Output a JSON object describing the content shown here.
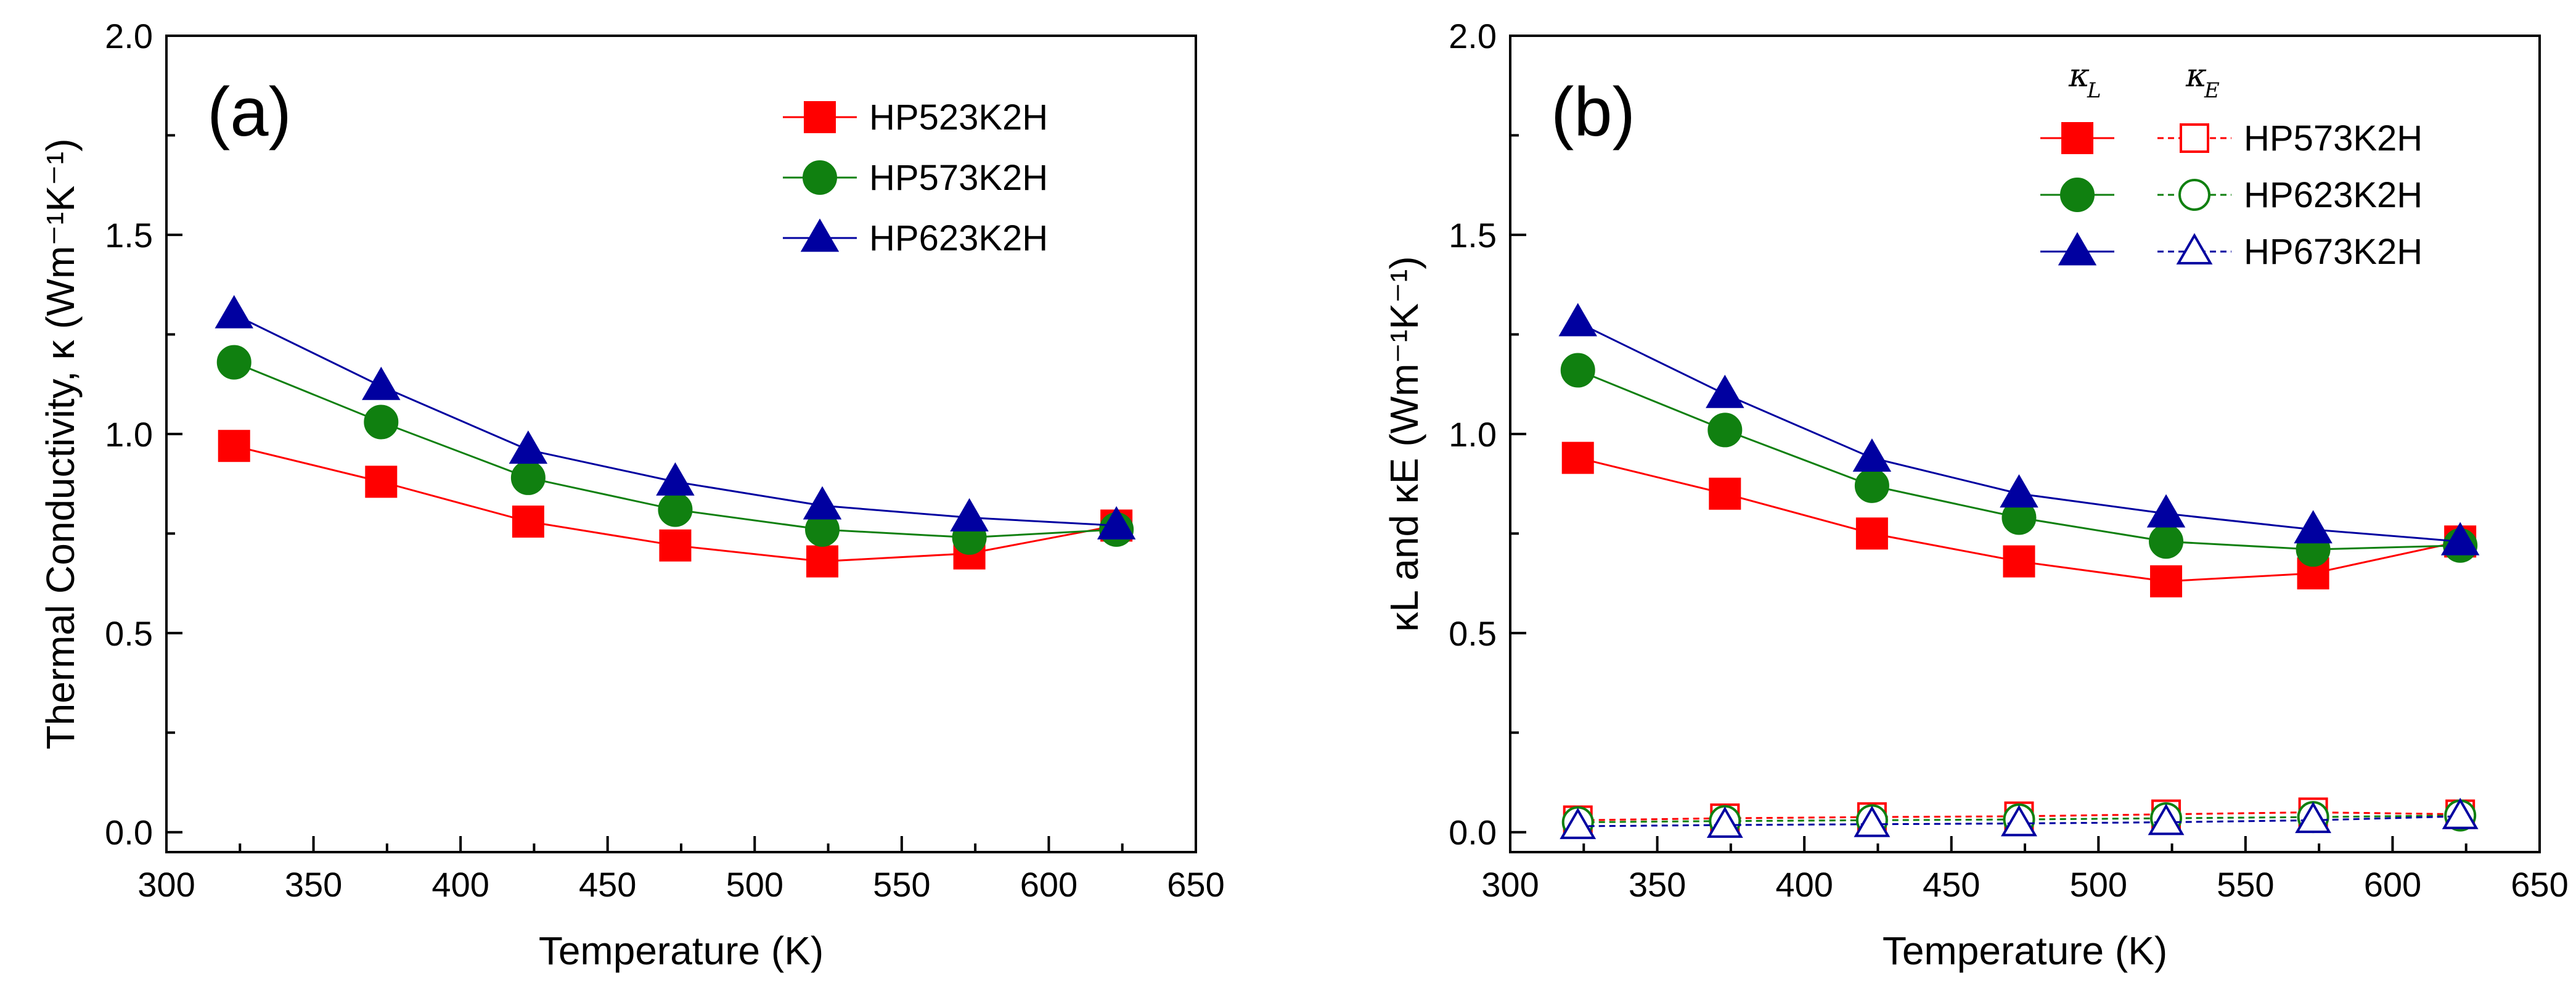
{
  "colors": {
    "red": "#ff0000",
    "green": "#108010",
    "blue": "#0000a0",
    "axis": "#000000"
  },
  "chart_data": [
    {
      "type": "line",
      "panel_label": "(a)",
      "xlabel": "Temperature (K)",
      "ylabel": "Thermal Conductivity, κ (Wm⁻¹K⁻¹)",
      "xlim": [
        300,
        650
      ],
      "ylim": [
        -0.05,
        2.0
      ],
      "xticks": [
        "300",
        "350",
        "400",
        "450",
        "500",
        "550",
        "600",
        "650"
      ],
      "yticks": [
        "0.0",
        "0.5",
        "1.0",
        "1.5",
        "2.0"
      ],
      "x": [
        323,
        373,
        423,
        473,
        523,
        573,
        623
      ],
      "series": [
        {
          "name": "HP523K2H",
          "color": "red",
          "marker": "square",
          "fill": "solid",
          "line": "solid",
          "values": [
            0.97,
            0.88,
            0.78,
            0.72,
            0.68,
            0.7,
            0.77
          ]
        },
        {
          "name": "HP573K2H",
          "color": "green",
          "marker": "circle",
          "fill": "solid",
          "line": "solid",
          "values": [
            1.18,
            1.03,
            0.89,
            0.81,
            0.76,
            0.74,
            0.76
          ]
        },
        {
          "name": "HP623K2H",
          "color": "blue",
          "marker": "triangle",
          "fill": "solid",
          "line": "solid",
          "values": [
            1.3,
            1.12,
            0.96,
            0.88,
            0.82,
            0.79,
            0.77
          ]
        }
      ],
      "legend_position": "top-right"
    },
    {
      "type": "line",
      "panel_label": "(b)",
      "xlabel": "Temperature (K)",
      "ylabel": "κL and κE (Wm⁻¹K⁻¹)",
      "xlim": [
        300,
        650
      ],
      "ylim": [
        -0.05,
        2.0
      ],
      "xticks": [
        "300",
        "350",
        "400",
        "450",
        "500",
        "550",
        "600",
        "650"
      ],
      "yticks": [
        "0.0",
        "0.5",
        "1.0",
        "1.5",
        "2.0"
      ],
      "x": [
        323,
        373,
        423,
        473,
        523,
        573,
        623
      ],
      "legend_headers": {
        "kL": "κ",
        "kL_sub": "L",
        "kE": "κ",
        "kE_sub": "E"
      },
      "series": [
        {
          "name": "HP573K2H",
          "quantity": "κL",
          "color": "red",
          "marker": "square",
          "fill": "solid",
          "line": "solid",
          "values": [
            0.94,
            0.85,
            0.75,
            0.68,
            0.63,
            0.65,
            0.73
          ]
        },
        {
          "name": "HP623K2H",
          "quantity": "κL",
          "color": "green",
          "marker": "circle",
          "fill": "solid",
          "line": "solid",
          "values": [
            1.16,
            1.01,
            0.87,
            0.79,
            0.73,
            0.71,
            0.72
          ]
        },
        {
          "name": "HP673K2H",
          "quantity": "κL",
          "color": "blue",
          "marker": "triangle",
          "fill": "solid",
          "line": "solid",
          "values": [
            1.28,
            1.1,
            0.94,
            0.85,
            0.8,
            0.76,
            0.73
          ]
        },
        {
          "name": "HP573K2H",
          "quantity": "κE",
          "color": "red",
          "marker": "square",
          "fill": "open",
          "line": "dashed",
          "values": [
            0.03,
            0.035,
            0.038,
            0.04,
            0.045,
            0.05,
            0.045
          ]
        },
        {
          "name": "HP623K2H",
          "quantity": "κE",
          "color": "green",
          "marker": "circle",
          "fill": "open",
          "line": "dashed",
          "values": [
            0.025,
            0.028,
            0.03,
            0.032,
            0.035,
            0.038,
            0.042
          ]
        },
        {
          "name": "HP673K2H",
          "quantity": "κE",
          "color": "blue",
          "marker": "triangle",
          "fill": "open",
          "line": "dashed",
          "values": [
            0.015,
            0.018,
            0.02,
            0.022,
            0.025,
            0.03,
            0.04
          ]
        }
      ],
      "legend_entries": [
        "HP573K2H",
        "HP623K2H",
        "HP673K2H"
      ],
      "legend_position": "top-right"
    }
  ]
}
